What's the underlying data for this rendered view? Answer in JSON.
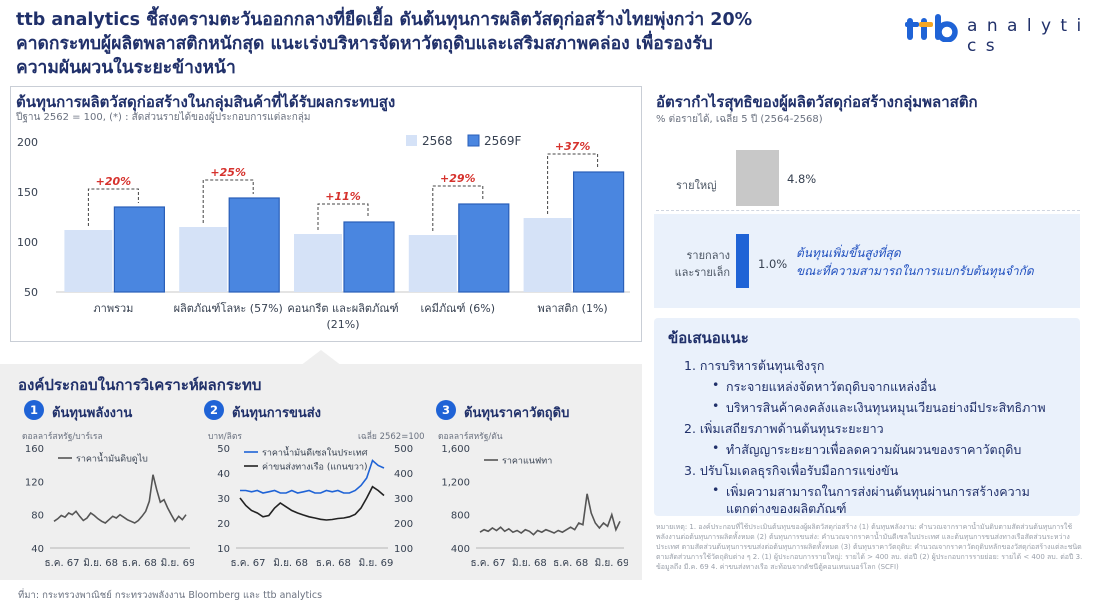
{
  "headline": {
    "line1": "ttb analytics ชี้สงครามตะวันออกกลางที่ยืดเยื้อ ดันต้นทุนการผลิตวัสดุก่อสร้างไทยพุ่งกว่า 20%",
    "line2": "คาดกระทบผู้ผลิตพลาสติกหนักสุด แนะเร่งบริหารจัดหาวัตถุดิบและเสริมสภาพคล่อง เพื่อรองรับ",
    "line3": "ความผันผวนในระยะข้างหน้า"
  },
  "logo": {
    "word": "a n a l y t i c s",
    "brand_color": "#1f63d6",
    "accent_color": "#f5a623"
  },
  "cost_panel": {
    "title": "ต้นทุนการผลิตวัสดุก่อสร้างในกลุ่มสินค้าที่ได้รับผลกระทบสูง",
    "subtitle": "ปีฐาน 2562 = 100, (*) : สัดส่วนรายได้ของผู้ประกอบการแต่ละกลุ่ม"
  },
  "chart_data": [
    {
      "type": "bar",
      "categories": [
        "ภาพรวม",
        "ผลิตภัณฑ์โลหะ (57%)",
        "คอนกรีต และผลิตภัณฑ์ (21%)",
        "เคมีภัณฑ์ (6%)",
        "พลาสติก (1%)"
      ],
      "series": [
        {
          "name": "2568",
          "values": [
            112,
            115,
            108,
            107,
            124
          ],
          "color": "#d5e2f7"
        },
        {
          "name": "2569F",
          "values": [
            135,
            144,
            120,
            138,
            170
          ],
          "color": "#4a86e0"
        }
      ],
      "annotations": [
        "+20%",
        "+25%",
        "+11%",
        "+29%",
        "+37%"
      ],
      "yticks": [
        50,
        100,
        150,
        200
      ],
      "ylim": [
        50,
        200
      ],
      "legend": "top-right"
    },
    {
      "type": "line",
      "title": "ต้นทุนพลังงาน",
      "ylabel": "ดอลลาร์สหรัฐ/บาร์เรล",
      "series": [
        {
          "name": "ราคาน้ำมันดิบดูไบ",
          "values": [
            72,
            75,
            79,
            77,
            82,
            80,
            84,
            78,
            73,
            76,
            82,
            79,
            75,
            72,
            70,
            74,
            78,
            76,
            80,
            77,
            74,
            72,
            70,
            73,
            78,
            84,
            96,
            128,
            110,
            95,
            98,
            88,
            80,
            72,
            78,
            74,
            80
          ],
          "color": "#555555"
        }
      ],
      "xticks": [
        "ธ.ค. 67",
        "มิ.ย. 68",
        "ธ.ค. 68",
        "มิ.ย. 69"
      ],
      "yticks": [
        40,
        80,
        120,
        160
      ],
      "ylim": [
        40,
        160
      ]
    },
    {
      "type": "line",
      "title": "ต้นทุนการขนส่ง",
      "ylabel": "บาท/ลิตร",
      "y2label": "เฉลี่ย 2562=100",
      "series": [
        {
          "name": "ราคาน้ำมันดีเซลในประเทศ",
          "axis": "left",
          "values": [
            33,
            33,
            32.5,
            33,
            32,
            32.5,
            33,
            32,
            32,
            33,
            32,
            32.5,
            33,
            32,
            32,
            33,
            32.5,
            33,
            32,
            32,
            33,
            35,
            38,
            45,
            43,
            42
          ],
          "color": "#1f63d6"
        },
        {
          "name": "ค่าขนส่งทางเรือ (แกนขวา)",
          "axis": "right",
          "values": [
            300,
            270,
            250,
            240,
            225,
            230,
            260,
            280,
            265,
            250,
            240,
            232,
            225,
            220,
            215,
            212,
            214,
            218,
            220,
            225,
            235,
            260,
            300,
            345,
            330,
            310
          ],
          "color": "#222222"
        }
      ],
      "xticks": [
        "ธ.ค. 67",
        "มิ.ย. 68",
        "ธ.ค. 68",
        "มิ.ย. 69"
      ],
      "yticks": [
        10,
        20,
        30,
        40,
        50
      ],
      "ylim": [
        10,
        50
      ],
      "y2ticks": [
        100,
        200,
        300,
        400,
        500
      ],
      "y2lim": [
        100,
        500
      ],
      "legend": "top-left"
    },
    {
      "type": "line",
      "title": "ต้นทุนราคาวัตถุดิบ",
      "ylabel": "ดอลลาร์สหรัฐ/ตัน",
      "series": [
        {
          "name": "ราคาแนฟทา",
          "values": [
            590,
            620,
            600,
            640,
            610,
            650,
            600,
            630,
            590,
            610,
            580,
            620,
            600,
            560,
            610,
            590,
            620,
            600,
            580,
            610,
            590,
            620,
            650,
            620,
            700,
            680,
            1050,
            820,
            700,
            640,
            700,
            660,
            800,
            620,
            720
          ],
          "color": "#555555"
        }
      ],
      "xticks": [
        "ธ.ค. 67",
        "มิ.ย. 68",
        "ธ.ค. 68",
        "มิ.ย. 69"
      ],
      "yticks": [
        400,
        800,
        1200,
        1600
      ],
      "yticklabels": [
        "400",
        "800",
        "1,200",
        "1,600"
      ],
      "ylim": [
        400,
        1600
      ]
    }
  ],
  "components": {
    "title": "องค์ประกอบในการวิเคราะห์ผลกระทบ",
    "items": [
      {
        "num": "1",
        "title": "ต้นทุนพลังงาน",
        "unit": "ดอลลาร์สหรัฐ/บาร์เรล"
      },
      {
        "num": "2",
        "title": "ต้นทุนการขนส่ง",
        "unit": "บาท/ลิตร",
        "note": "เฉลี่ย 2562=100"
      },
      {
        "num": "3",
        "title": "ต้นทุนราคาวัตถุดิบ",
        "unit": "ดอลลาร์สหรัฐ/ตัน"
      }
    ]
  },
  "source": "ที่มา: กระทรวงพาณิชย์ กระทรวงพลังงาน Bloomberg และ ttb analytics",
  "margin_panel": {
    "title": "อัตรากำไรสุทธิของผู้ผลิตวัสดุก่อสร้างกลุ่มพลาสติก",
    "subtitle": "% ต่อรายได้, เฉลี่ย 5 ปี (2564-2568)",
    "large_label": "รายใหญ่",
    "large_value": "4.8%",
    "small_label_1": "รายกลาง",
    "small_label_2": "และรายเล็ก",
    "small_value": "1.0%",
    "callout_1": "ต้นทุนเพิ่มขึ้นสูงที่สุด",
    "callout_2": "ขณะที่ความสามารถในการแบกรับต้นทุนจำกัด"
  },
  "recommendations": {
    "title": "ข้อเสนอแนะ",
    "items": [
      {
        "main": "1.  การบริหารต้นทุนเชิงรุก",
        "bullets": [
          "กระจายแหล่งจัดหาวัตถุดิบจากแหล่งอื่น",
          "บริหารสินค้าคงคลังและเงินทุนหมุนเวียนอย่างมีประสิทธิภาพ"
        ]
      },
      {
        "main": "2.  เพิ่มเสถียรภาพด้านต้นทุนระยะยาว",
        "bullets": [
          "ทำสัญญาระยะยาวเพื่อลดความผันผวนของราคาวัตถุดิบ"
        ]
      },
      {
        "main": "3.  ปรับโมเดลธุรกิจเพื่อรับมือการแข่งขัน",
        "bullets": [
          "เพิ่มความสามารถในการส่งผ่านต้นทุนผ่านการสร้างความ",
          "แตกต่างของผลิตภัณฑ์"
        ]
      }
    ]
  },
  "footnote": "หมายเหตุ: 1. องค์ประกอบที่ใช้ประเมินต้นทุนของผู้ผลิตวัสดุก่อสร้าง (1) ต้นทุนพลังงาน: คำนวณจากราคาน้ำมันดิบตามสัดส่วนต้นทุนการใช้พลังงานต่อต้นทุนการผลิตทั้งหมด (2) ต้นทุนการขนส่ง: คำนวณจากราคาน้ำมันดีเซลในประเทศ และต้นทุนการขนส่งทางเรือสัดส่วนระหว่างประเทศ ตามสัดส่วนต้นทุนการขนส่งต่อต้นทุนการผลิตทั้งหมด (3) ต้นทุนราคาวัตถุดิบ: คำนวณจากราคาวัตถุดิบหลักของวัสดุก่อสร้างแต่ละชนิดตามสัดส่วนการใช้วัตถุดิบต่าง ๆ 2. (1) ผู้ประกอบการรายใหญ่: รายได้ > 400 ลบ. ต่อปี (2) ผู้ประกอบการรายย่อย: รายได้ < 400 ลบ. ต่อปี 3. ข้อมูลถึง มี.ค. 69 4. ค่าขนส่งทางเรือ สะท้อนจากดัชนีตู้คอนเทนเนอร์โลก (SCFI)"
}
